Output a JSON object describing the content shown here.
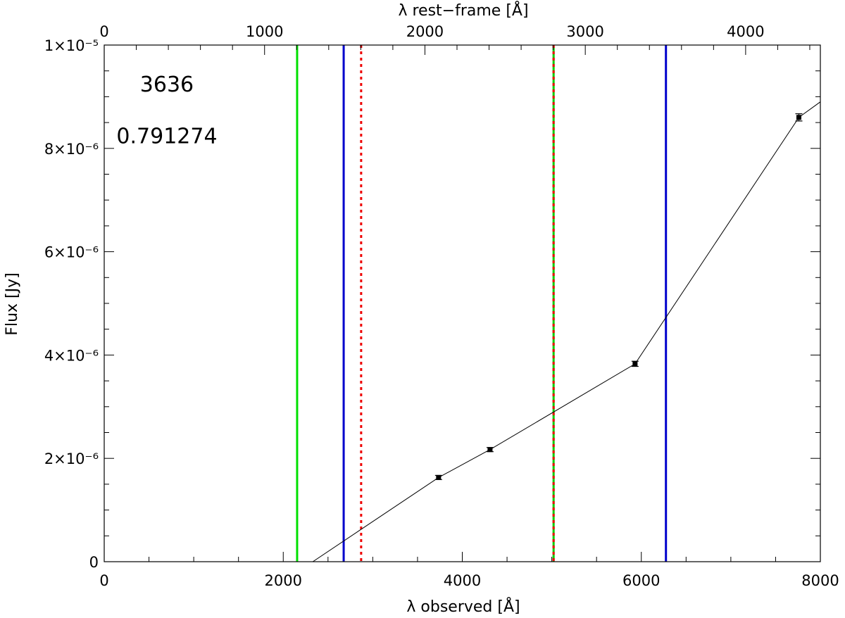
{
  "chart_data": {
    "type": "scatter",
    "xlabel": "λ observed [Å]",
    "x2label": "λ rest−frame [Å]",
    "ylabel": "Flux [Jy]",
    "xlim": [
      0,
      8000
    ],
    "x2lim": [
      0,
      4466
    ],
    "ylim": [
      0,
      1e-05
    ],
    "grid": false,
    "x_ticks": [
      {
        "value": 0,
        "label": "0"
      },
      {
        "value": 2000,
        "label": "2000"
      },
      {
        "value": 4000,
        "label": "4000"
      },
      {
        "value": 6000,
        "label": "6000"
      },
      {
        "value": 8000,
        "label": "8000"
      }
    ],
    "x2_ticks": [
      {
        "value": 0,
        "label": "0"
      },
      {
        "value": 1000,
        "label": "1000"
      },
      {
        "value": 2000,
        "label": "2000"
      },
      {
        "value": 3000,
        "label": "3000"
      },
      {
        "value": 4000,
        "label": "4000"
      }
    ],
    "y_ticks": [
      {
        "value": 0,
        "label": "0"
      },
      {
        "value": 2e-06,
        "label": "2×10⁻⁶"
      },
      {
        "value": 4e-06,
        "label": "4×10⁻⁶"
      },
      {
        "value": 6e-06,
        "label": "6×10⁻⁶"
      },
      {
        "value": 8e-06,
        "label": "8×10⁻⁶"
      },
      {
        "value": 1e-05,
        "label": "1×10⁻⁵"
      }
    ],
    "annotations": [
      {
        "text": "3636",
        "x": 700,
        "y": 9.1e-06
      },
      {
        "text": "0.791274",
        "x": 700,
        "y": 8.1e-06
      }
    ],
    "points": [
      {
        "x": 3735,
        "y": 1.63e-06,
        "yerr": 4e-08
      },
      {
        "x": 4310,
        "y": 2.17e-06,
        "yerr": 4e-08
      },
      {
        "x": 5930,
        "y": 3.83e-06,
        "yerr": 5e-08
      },
      {
        "x": 7760,
        "y": 8.6e-06,
        "yerr": 7e-08
      }
    ],
    "line": [
      {
        "x": 2330,
        "y": 0
      },
      {
        "x": 3735,
        "y": 1.63e-06
      },
      {
        "x": 4310,
        "y": 2.17e-06
      },
      {
        "x": 5930,
        "y": 3.83e-06
      },
      {
        "x": 7760,
        "y": 8.6e-06
      },
      {
        "x": 8000,
        "y": 8.9e-06
      }
    ],
    "vlines": [
      {
        "x": 2155,
        "color": "#00e000",
        "style": "solid"
      },
      {
        "x": 2675,
        "color": "#0000cc",
        "style": "solid"
      },
      {
        "x": 2870,
        "color": "#ee0000",
        "style": "dotted"
      },
      {
        "x": 5020,
        "color": "#00cc00",
        "style": "solid"
      },
      {
        "x": 5020,
        "color": "#ee0000",
        "style": "dotted"
      },
      {
        "x": 6275,
        "color": "#0000cc",
        "style": "solid"
      }
    ]
  }
}
